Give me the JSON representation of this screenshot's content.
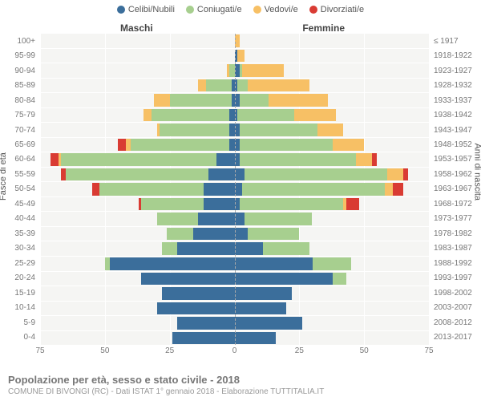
{
  "legend": [
    {
      "label": "Celibi/Nubili",
      "color": "#3b6e9b"
    },
    {
      "label": "Coniugati/e",
      "color": "#a7cf8f"
    },
    {
      "label": "Vedovi/e",
      "color": "#f7c065"
    },
    {
      "label": "Divorziati/e",
      "color": "#d93b33"
    }
  ],
  "side_headers": {
    "left": "Maschi",
    "right": "Femmine"
  },
  "y_axis_left_title": "Fasce di età",
  "y_axis_right_title": "Anni di nascita",
  "title": "Popolazione per età, sesso e stato civile - 2018",
  "subtitle": "COMUNE DI BIVONGI (RC) - Dati ISTAT 1° gennaio 2018 - Elaborazione TUTTITALIA.IT",
  "x_max": 75,
  "x_ticks": [
    75,
    50,
    25,
    0,
    25,
    50,
    75
  ],
  "colors": {
    "single": "#3b6e9b",
    "married": "#a7cf8f",
    "widowed": "#f7c065",
    "divorced": "#d93b33",
    "plot_bg": "#f5f5f3",
    "grid": "#ffffff"
  },
  "rows": [
    {
      "age": "100+",
      "birth": "≤ 1917",
      "m": {
        "single": 0,
        "married": 0,
        "widowed": 0,
        "divorced": 0
      },
      "f": {
        "single": 0,
        "married": 0,
        "widowed": 2,
        "divorced": 0
      }
    },
    {
      "age": "95-99",
      "birth": "1918-1922",
      "m": {
        "single": 0,
        "married": 0,
        "widowed": 0,
        "divorced": 0
      },
      "f": {
        "single": 1,
        "married": 0,
        "widowed": 3,
        "divorced": 0
      }
    },
    {
      "age": "90-94",
      "birth": "1923-1927",
      "m": {
        "single": 0,
        "married": 2,
        "widowed": 1,
        "divorced": 0
      },
      "f": {
        "single": 2,
        "married": 1,
        "widowed": 16,
        "divorced": 0
      }
    },
    {
      "age": "85-89",
      "birth": "1928-1932",
      "m": {
        "single": 1,
        "married": 10,
        "widowed": 3,
        "divorced": 0
      },
      "f": {
        "single": 1,
        "married": 4,
        "widowed": 24,
        "divorced": 0
      }
    },
    {
      "age": "80-84",
      "birth": "1933-1937",
      "m": {
        "single": 1,
        "married": 24,
        "widowed": 6,
        "divorced": 0
      },
      "f": {
        "single": 2,
        "married": 11,
        "widowed": 23,
        "divorced": 0
      }
    },
    {
      "age": "75-79",
      "birth": "1938-1942",
      "m": {
        "single": 2,
        "married": 30,
        "widowed": 3,
        "divorced": 0
      },
      "f": {
        "single": 1,
        "married": 22,
        "widowed": 16,
        "divorced": 0
      }
    },
    {
      "age": "70-74",
      "birth": "1943-1947",
      "m": {
        "single": 2,
        "married": 27,
        "widowed": 1,
        "divorced": 0
      },
      "f": {
        "single": 2,
        "married": 30,
        "widowed": 10,
        "divorced": 0
      }
    },
    {
      "age": "65-69",
      "birth": "1948-1952",
      "m": {
        "single": 2,
        "married": 38,
        "widowed": 2,
        "divorced": 3
      },
      "f": {
        "single": 2,
        "married": 36,
        "widowed": 12,
        "divorced": 0
      }
    },
    {
      "age": "60-64",
      "birth": "1953-1957",
      "m": {
        "single": 7,
        "married": 60,
        "widowed": 1,
        "divorced": 3
      },
      "f": {
        "single": 2,
        "married": 45,
        "widowed": 6,
        "divorced": 2
      }
    },
    {
      "age": "55-59",
      "birth": "1958-1962",
      "m": {
        "single": 10,
        "married": 55,
        "widowed": 0,
        "divorced": 2
      },
      "f": {
        "single": 4,
        "married": 55,
        "widowed": 6,
        "divorced": 2
      }
    },
    {
      "age": "50-54",
      "birth": "1963-1967",
      "m": {
        "single": 12,
        "married": 40,
        "widowed": 0,
        "divorced": 3
      },
      "f": {
        "single": 3,
        "married": 55,
        "widowed": 3,
        "divorced": 4
      }
    },
    {
      "age": "45-49",
      "birth": "1968-1972",
      "m": {
        "single": 12,
        "married": 24,
        "widowed": 0,
        "divorced": 1
      },
      "f": {
        "single": 2,
        "married": 40,
        "widowed": 1,
        "divorced": 5
      }
    },
    {
      "age": "40-44",
      "birth": "1973-1977",
      "m": {
        "single": 14,
        "married": 16,
        "widowed": 0,
        "divorced": 0
      },
      "f": {
        "single": 4,
        "married": 26,
        "widowed": 0,
        "divorced": 0
      }
    },
    {
      "age": "35-39",
      "birth": "1978-1982",
      "m": {
        "single": 16,
        "married": 10,
        "widowed": 0,
        "divorced": 0
      },
      "f": {
        "single": 5,
        "married": 20,
        "widowed": 0,
        "divorced": 0
      }
    },
    {
      "age": "30-34",
      "birth": "1983-1987",
      "m": {
        "single": 22,
        "married": 6,
        "widowed": 0,
        "divorced": 0
      },
      "f": {
        "single": 11,
        "married": 18,
        "widowed": 0,
        "divorced": 0
      }
    },
    {
      "age": "25-29",
      "birth": "1988-1992",
      "m": {
        "single": 48,
        "married": 2,
        "widowed": 0,
        "divorced": 0
      },
      "f": {
        "single": 30,
        "married": 15,
        "widowed": 0,
        "divorced": 0
      }
    },
    {
      "age": "20-24",
      "birth": "1993-1997",
      "m": {
        "single": 36,
        "married": 0,
        "widowed": 0,
        "divorced": 0
      },
      "f": {
        "single": 38,
        "married": 5,
        "widowed": 0,
        "divorced": 0
      }
    },
    {
      "age": "15-19",
      "birth": "1998-2002",
      "m": {
        "single": 28,
        "married": 0,
        "widowed": 0,
        "divorced": 0
      },
      "f": {
        "single": 22,
        "married": 0,
        "widowed": 0,
        "divorced": 0
      }
    },
    {
      "age": "10-14",
      "birth": "2003-2007",
      "m": {
        "single": 30,
        "married": 0,
        "widowed": 0,
        "divorced": 0
      },
      "f": {
        "single": 20,
        "married": 0,
        "widowed": 0,
        "divorced": 0
      }
    },
    {
      "age": "5-9",
      "birth": "2008-2012",
      "m": {
        "single": 22,
        "married": 0,
        "widowed": 0,
        "divorced": 0
      },
      "f": {
        "single": 26,
        "married": 0,
        "widowed": 0,
        "divorced": 0
      }
    },
    {
      "age": "0-4",
      "birth": "2013-2017",
      "m": {
        "single": 24,
        "married": 0,
        "widowed": 0,
        "divorced": 0
      },
      "f": {
        "single": 16,
        "married": 0,
        "widowed": 0,
        "divorced": 0
      }
    }
  ]
}
